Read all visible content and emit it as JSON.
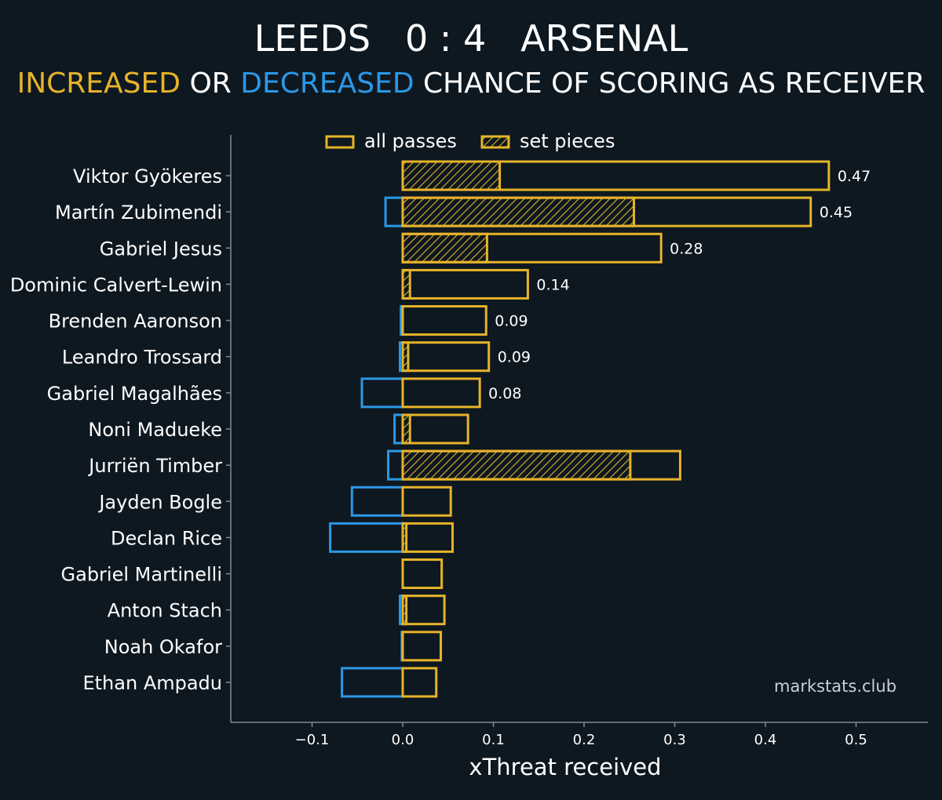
{
  "header": {
    "title_home": "LEEDS",
    "title_score": "0 : 4",
    "title_away": "ARSENAL",
    "subtitle_increased": "INCREASED",
    "subtitle_or": " OR ",
    "subtitle_decreased": "DECREASED",
    "subtitle_rest": " CHANCE OF SCORING AS RECEIVER"
  },
  "colors": {
    "background": "#0e1820",
    "increase": "#e6b32a",
    "decrease": "#2b98e6",
    "text": "#ffffff",
    "axis": "#7f8b93"
  },
  "watermark": "markstats.club",
  "chart_data": {
    "type": "bar",
    "orientation": "horizontal",
    "xlabel": "xThreat received",
    "ylabel": "",
    "xlim": [
      -0.19,
      0.58
    ],
    "xticks": [
      -0.1,
      0.0,
      0.1,
      0.2,
      0.3,
      0.4,
      0.5
    ],
    "xtick_labels": [
      "−0.1",
      "0.0",
      "0.1",
      "0.2",
      "0.3",
      "0.4",
      "0.5"
    ],
    "legend": {
      "position": "top-center",
      "entries": [
        "all passes",
        "set pieces"
      ]
    },
    "categories": [
      "Viktor Gyökeres",
      "Martín Zubimendi",
      "Gabriel Jesus",
      "Dominic Calvert-Lewin",
      "Brenden Aaronson",
      "Leandro Trossard",
      "Gabriel Magalhães",
      "Noni Madueke",
      "Jurriën Timber",
      "Jayden Bogle",
      "Declan Rice",
      "Gabriel Martinelli",
      "Anton Stach",
      "Noah Okafor",
      "Ethan Ampadu"
    ],
    "series": [
      {
        "name": "all passes (increased)",
        "values": [
          0.47,
          0.45,
          0.285,
          0.138,
          0.092,
          0.095,
          0.085,
          0.072,
          0.306,
          0.053,
          0.055,
          0.043,
          0.046,
          0.042,
          0.037
        ]
      },
      {
        "name": "all passes (decreased)",
        "values": [
          0.0,
          -0.019,
          0.0,
          0.0,
          -0.002,
          -0.003,
          -0.045,
          -0.009,
          -0.016,
          -0.056,
          -0.08,
          0.0,
          -0.003,
          -0.001,
          -0.067
        ]
      },
      {
        "name": "set pieces",
        "values": [
          0.107,
          0.255,
          0.093,
          0.008,
          0.0,
          0.006,
          0.0,
          0.008,
          0.251,
          0.0,
          0.004,
          0.0,
          0.004,
          0.0,
          0.0
        ]
      }
    ],
    "value_labels": [
      "0.47",
      "0.45",
      "0.28",
      "0.14",
      "0.09",
      "0.09",
      "0.08",
      "",
      "",
      "",
      "",
      "",
      "",
      "",
      ""
    ]
  }
}
